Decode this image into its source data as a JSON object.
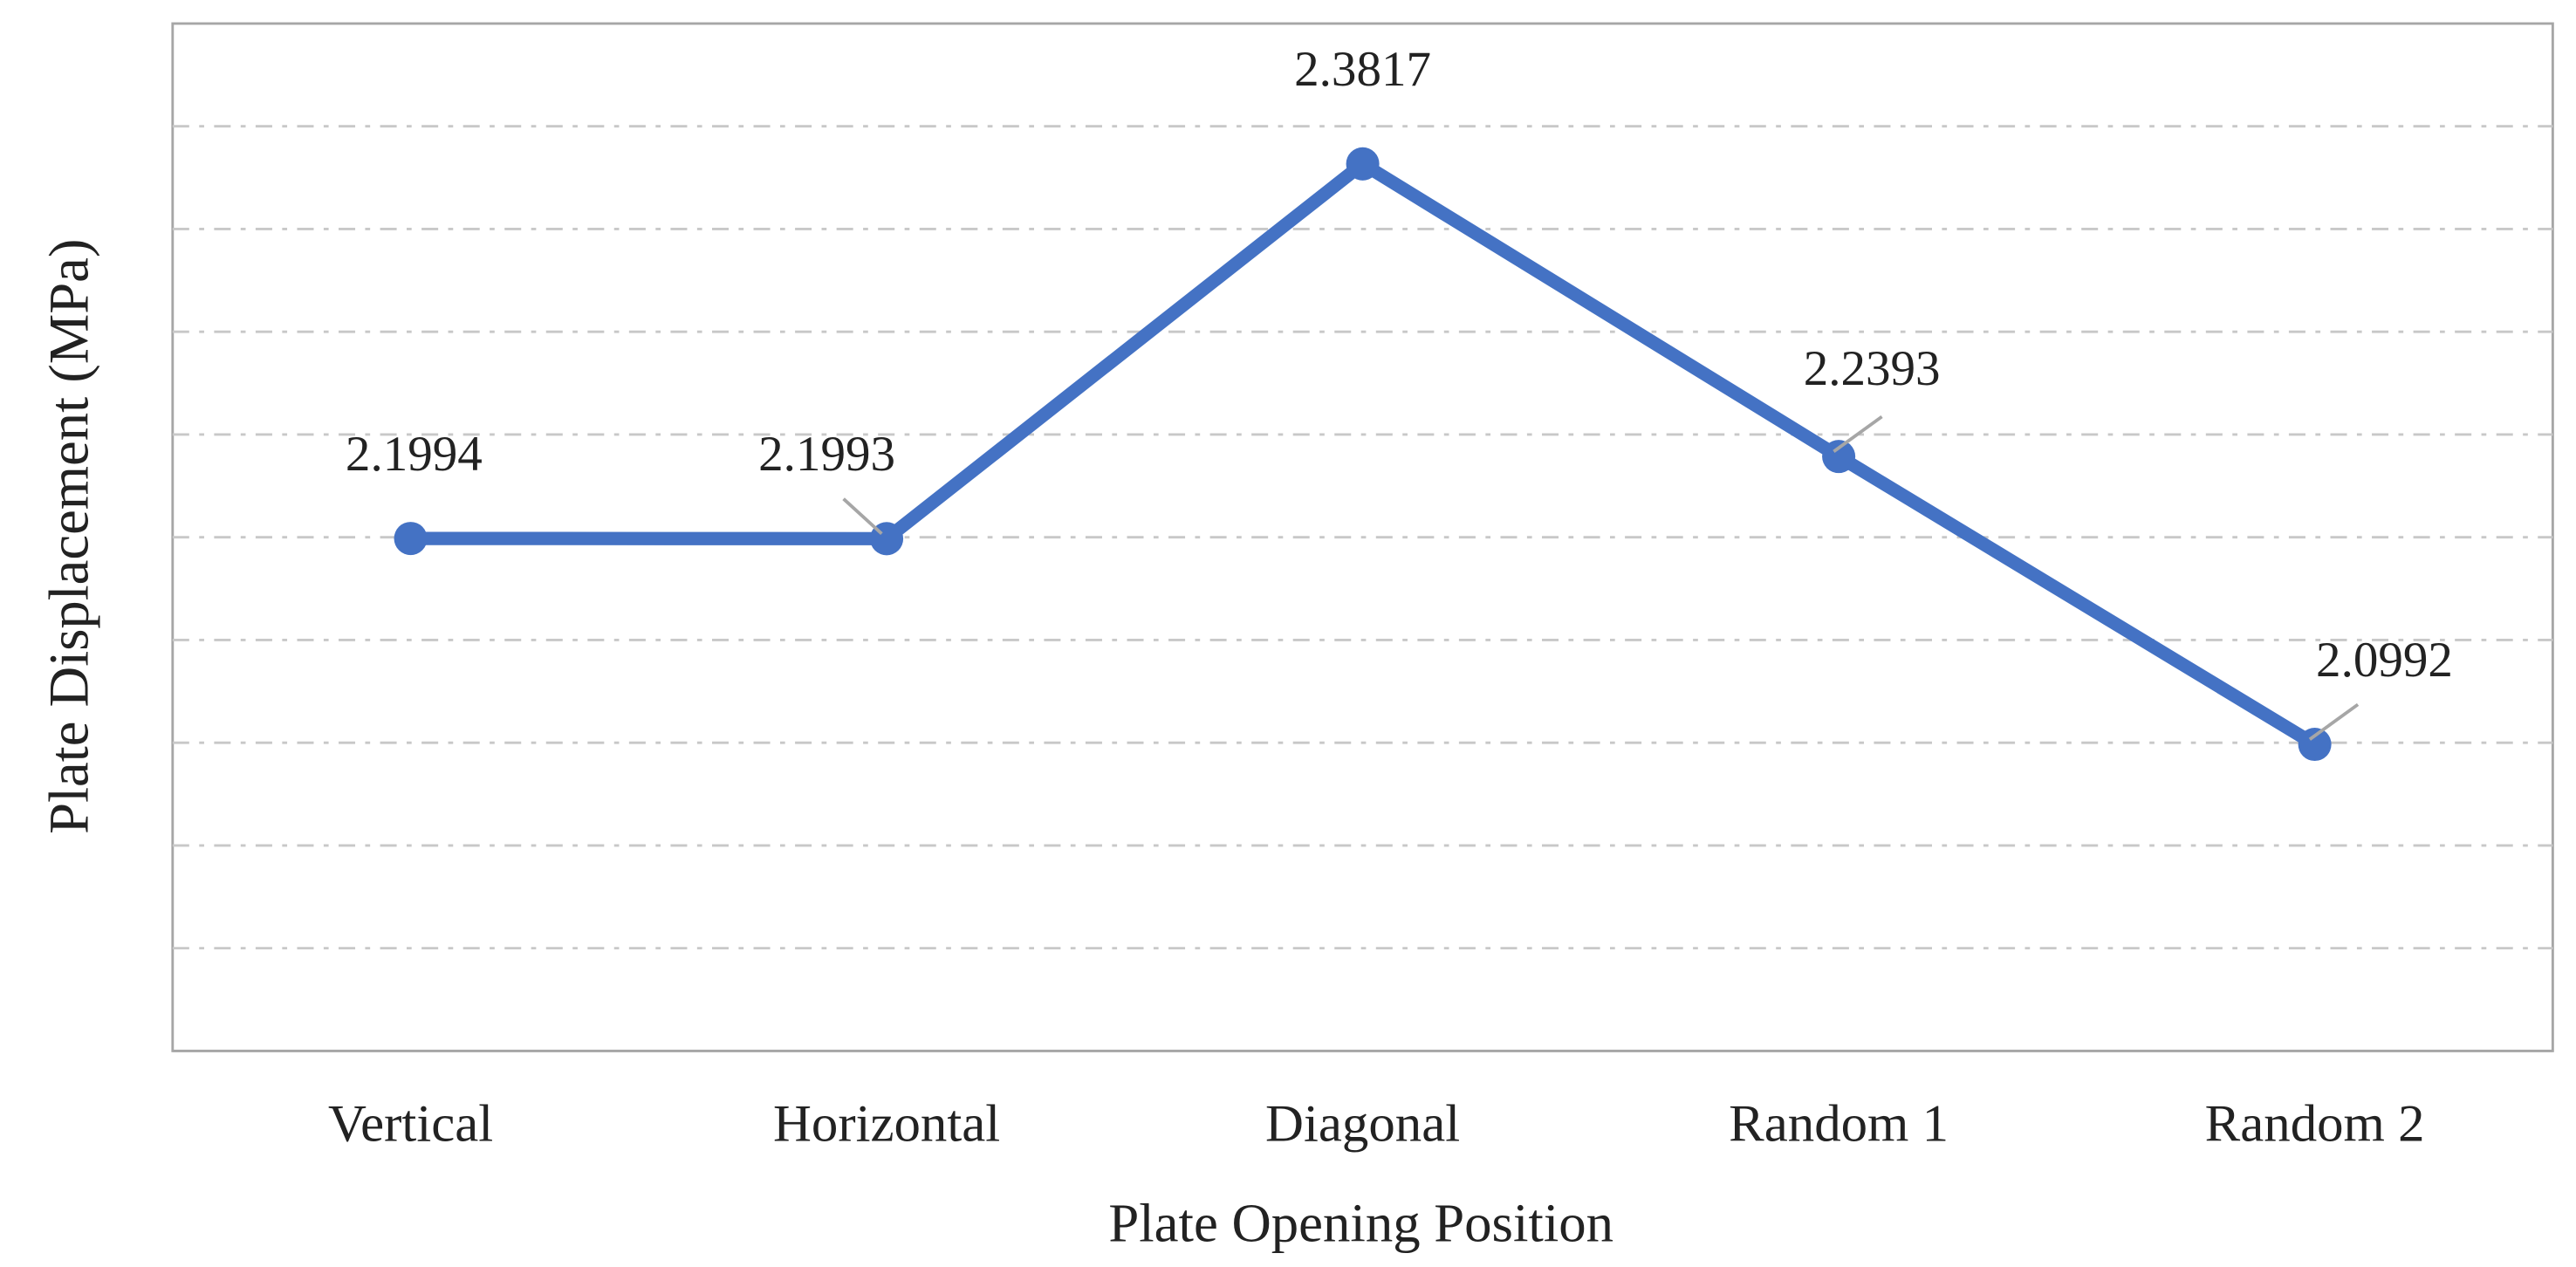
{
  "chart_data": {
    "type": "line",
    "x_label": "Plate Opening Position",
    "y_label": "Plate Displacement (MPa)",
    "categories": [
      "Vertical",
      "Horizontal",
      "Diagonal",
      "Random 1",
      "Random 2"
    ],
    "values": [
      2.1994,
      2.1993,
      2.3817,
      2.2393,
      2.0992
    ],
    "color": "#4472c4",
    "ylim": [
      1.95,
      2.45
    ],
    "yticks": [
      2.0,
      2.05,
      2.1,
      2.15,
      2.2,
      2.25,
      2.3,
      2.35,
      2.4
    ],
    "show_ytick_labels": false,
    "grid": true,
    "data_labels": true
  }
}
